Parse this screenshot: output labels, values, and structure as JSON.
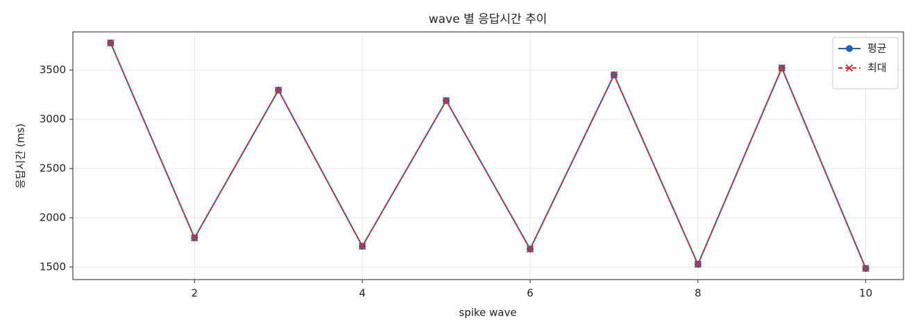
{
  "chart_data": {
    "type": "line",
    "title": "wave 별 응답시간 추이",
    "x_label": "spike wave",
    "y_label": "응답시간 (ms)",
    "x": [
      1,
      2,
      3,
      4,
      5,
      6,
      7,
      8,
      9,
      10
    ],
    "series": [
      {
        "name": "평균",
        "color": "#1f64b4",
        "marker": "circle",
        "linestyle": "solid",
        "values": [
          3775,
          1796,
          3296,
          1711,
          3190,
          1683,
          3451,
          1528,
          3521,
          1486
        ]
      },
      {
        "name": "최대",
        "color": "#d03030",
        "marker": "x",
        "linestyle": "dashed",
        "values": [
          3775,
          1796,
          3296,
          1711,
          3190,
          1683,
          3451,
          1528,
          3521,
          1486
        ]
      }
    ],
    "xlim": [
      0.55,
      10.45
    ],
    "ylim": [
      1373,
      3887
    ],
    "xticks": [
      2,
      4,
      6,
      8,
      10
    ],
    "yticks": [
      1500,
      2000,
      2500,
      3000,
      3500
    ],
    "grid": true,
    "legend": "upper right"
  }
}
